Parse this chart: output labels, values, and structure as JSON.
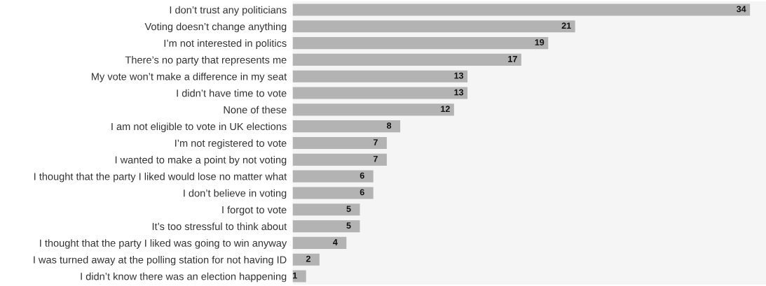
{
  "chart_data": {
    "type": "bar",
    "orientation": "horizontal",
    "data_labels": true,
    "grid": false,
    "tick_labels": "y",
    "color": "#b3b3b3",
    "categories": [
      "I don’t trust any politicians",
      "Voting doesn’t change anything",
      "I’m not interested in politics",
      "There’s no party that represents me",
      "My vote won’t make a difference in my seat",
      "I didn’t have time to vote",
      "None of these",
      "I am not eligible to vote in UK elections",
      "I’m not registered to vote",
      "I wanted to make a point by not voting",
      "I thought that the party I liked would lose no matter what",
      "I don’t believe in voting",
      "I forgot to vote",
      "It’s too stressful to think about",
      "I thought that the party I liked was going to win anyway",
      "I was turned away at the polling station for not having ID",
      "I didn’t know there was an election happening"
    ],
    "values": [
      34,
      21,
      19,
      17,
      13,
      13,
      12,
      8,
      7,
      7,
      6,
      6,
      5,
      5,
      4,
      2,
      1
    ]
  }
}
